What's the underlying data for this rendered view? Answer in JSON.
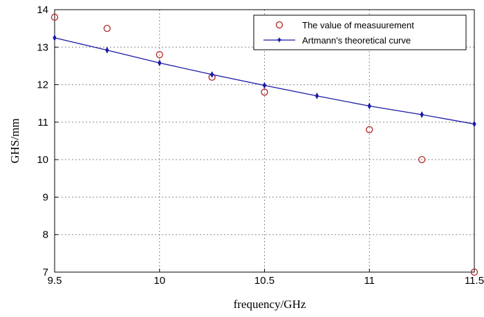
{
  "chart_data": {
    "type": "line",
    "title": "",
    "xlabel": "frequency/GHz",
    "ylabel": "GHS/mm",
    "xlim": [
      9.5,
      11.5
    ],
    "ylim": [
      7,
      14
    ],
    "xticks": [
      "9.5",
      "10",
      "10.5",
      "11",
      "11.5"
    ],
    "xtick_values": [
      9.5,
      10,
      10.5,
      11,
      11.5
    ],
    "yticks": [
      "7",
      "8",
      "9",
      "10",
      "11",
      "12",
      "13",
      "14"
    ],
    "ytick_values": [
      7,
      8,
      9,
      10,
      11,
      12,
      13,
      14
    ],
    "grid": true,
    "legend_position": "top-right",
    "series": [
      {
        "name": "The value of measuurement",
        "style": "markers",
        "marker": "circle",
        "color": "#b22222",
        "x": [
          9.5,
          9.75,
          10,
          10.25,
          10.5,
          11,
          11.25,
          11.5
        ],
        "y": [
          13.8,
          13.5,
          12.8,
          12.2,
          11.8,
          10.8,
          10.0,
          7.0
        ]
      },
      {
        "name": "Artmann's theoretical curve",
        "style": "line-markers",
        "marker": "star",
        "color": "#1a1aa6",
        "x": [
          9.5,
          9.75,
          10,
          10.25,
          10.5,
          10.75,
          11,
          11.25,
          11.5
        ],
        "y": [
          13.25,
          12.92,
          12.58,
          12.27,
          11.98,
          11.7,
          11.43,
          11.2,
          10.95
        ]
      }
    ]
  }
}
